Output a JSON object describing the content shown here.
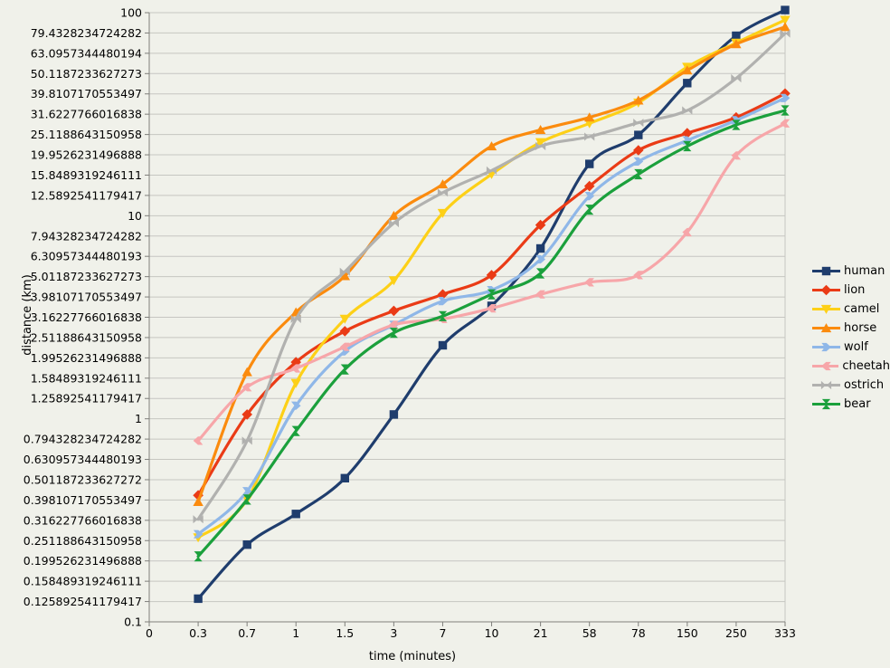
{
  "chart_data": {
    "type": "line",
    "title": "",
    "xlabel": "time (minutes)",
    "ylabel": "distance (km)",
    "x_origin_label": "0",
    "categories": [
      "0.3",
      "0.7",
      "1",
      "1.5",
      "3",
      "7",
      "10",
      "21",
      "58",
      "78",
      "150",
      "250",
      "333"
    ],
    "y_tick_labels": [
      "100",
      "79.4328234724282",
      "63.0957344480194",
      "50.1187233627273",
      "39.8107170553497",
      "31.6227766016838",
      "25.1188643150958",
      "19.9526231496888",
      "15.8489319246111",
      "12.5892541179417",
      "10",
      "7.94328234724282",
      "6.30957344480193",
      "5.01187233627273",
      "3.98107170553497",
      "3.16227766016838",
      "2.51188643150958",
      "1.99526231496888",
      "1.58489319246111",
      "1.25892541179417",
      "1",
      "0.794328234724282",
      "0.630957344480193",
      "0.501187233627272",
      "0.398107170553497",
      "0.316227766016838",
      "0.251188643150958",
      "0.199526231496888",
      "0.158489319246111",
      "0.125892541179417",
      "0.1"
    ],
    "ylim": [
      0.1,
      100
    ],
    "yscale": "log",
    "xscale": "category",
    "grid": true,
    "line_smoothing": true,
    "legend_position": "right",
    "series": [
      {
        "name": "human",
        "color": "#1f3d6d",
        "marker": "square",
        "values": [
          0.13,
          0.24,
          0.34,
          0.51,
          1.05,
          2.3,
          3.6,
          6.9,
          18,
          25,
          45,
          77,
          103
        ]
      },
      {
        "name": "lion",
        "color": "#ea3b16",
        "marker": "diamond",
        "values": [
          0.42,
          1.05,
          1.9,
          2.7,
          3.4,
          4.1,
          5.1,
          9,
          14,
          21,
          25.5,
          30.5,
          40
        ]
      },
      {
        "name": "camel",
        "color": "#fdd017",
        "marker": "triangle-down",
        "values": [
          0.26,
          0.4,
          1.5,
          3.1,
          4.8,
          10.3,
          16,
          23,
          28.5,
          36,
          54,
          71,
          92
        ]
      },
      {
        "name": "horse",
        "color": "#fb8b0e",
        "marker": "triangle-up",
        "values": [
          0.39,
          1.7,
          3.35,
          5.05,
          10,
          14.3,
          22,
          26.5,
          30.5,
          37,
          52,
          70,
          85
        ]
      },
      {
        "name": "wolf",
        "color": "#8fb7e8",
        "marker": "arrow-right",
        "values": [
          0.27,
          0.44,
          1.16,
          2.15,
          2.9,
          3.8,
          4.3,
          6.1,
          12.5,
          18.5,
          23.5,
          29.5,
          38
        ]
      },
      {
        "name": "cheetah",
        "color": "#f7a6a9",
        "marker": "arrow-left",
        "values": [
          0.78,
          1.43,
          1.77,
          2.26,
          2.9,
          3.1,
          3.5,
          4.1,
          4.7,
          5.1,
          8.3,
          19.8,
          28.5
        ]
      },
      {
        "name": "ostrich",
        "color": "#b1b1af",
        "marker": "bowtie-h",
        "values": [
          0.32,
          0.78,
          3.1,
          5.3,
          9.2,
          13,
          16.7,
          22,
          24.5,
          28.7,
          33,
          47.5,
          79
        ]
      },
      {
        "name": "bear",
        "color": "#1ba03c",
        "marker": "bowtie-v",
        "values": [
          0.21,
          0.4,
          0.87,
          1.75,
          2.65,
          3.2,
          4.1,
          5.2,
          10.7,
          16,
          22,
          28,
          33
        ]
      }
    ]
  },
  "colors": {
    "background": "#f0f1ea",
    "gridline": "#c6c6c1",
    "axis": "#7f7f7b",
    "text": "#000000"
  }
}
